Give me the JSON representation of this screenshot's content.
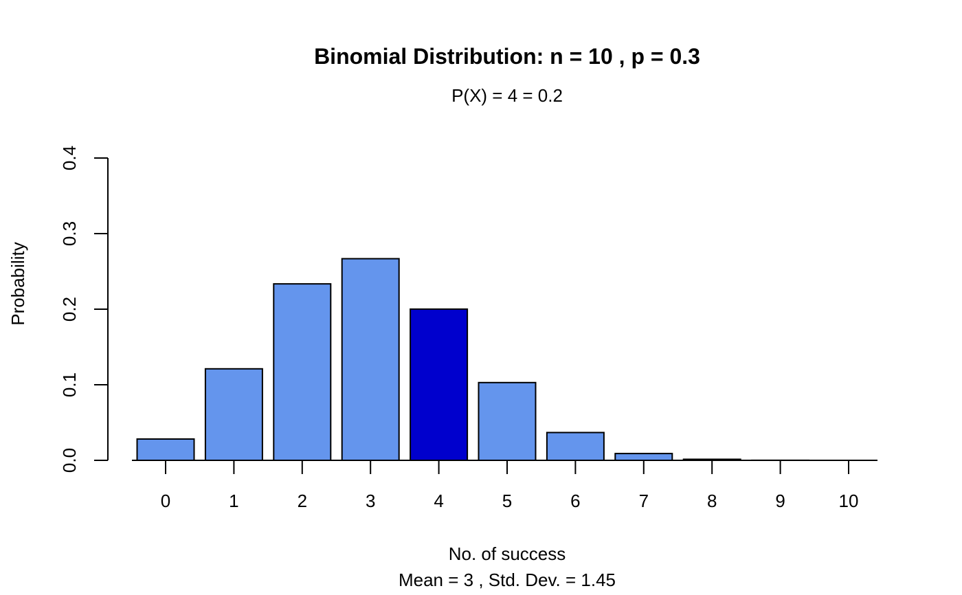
{
  "chart_data": {
    "type": "bar",
    "title": "Binomial Distribution: n = 10 , p = 0.3",
    "subtitle": "P(X) = 4 = 0.2",
    "xlabel": "No. of success",
    "xlabel_sub": "Mean = 3 , Std. Dev. = 1.45",
    "ylabel": "Probability",
    "categories": [
      "0",
      "1",
      "2",
      "3",
      "4",
      "5",
      "6",
      "7",
      "8",
      "9",
      "10"
    ],
    "values": [
      0.0282,
      0.1211,
      0.2335,
      0.2668,
      0.2001,
      0.1029,
      0.0368,
      0.009,
      0.0014,
      0.0001,
      0.0
    ],
    "highlight_category": "4",
    "ylim": [
      0,
      0.4
    ],
    "yticks": [
      "0.0",
      "0.1",
      "0.2",
      "0.3",
      "0.4"
    ],
    "grid": false,
    "legend": "none",
    "colors": {
      "bar": "#6495ED",
      "highlight": "#0000CD",
      "border": "#000000"
    }
  }
}
